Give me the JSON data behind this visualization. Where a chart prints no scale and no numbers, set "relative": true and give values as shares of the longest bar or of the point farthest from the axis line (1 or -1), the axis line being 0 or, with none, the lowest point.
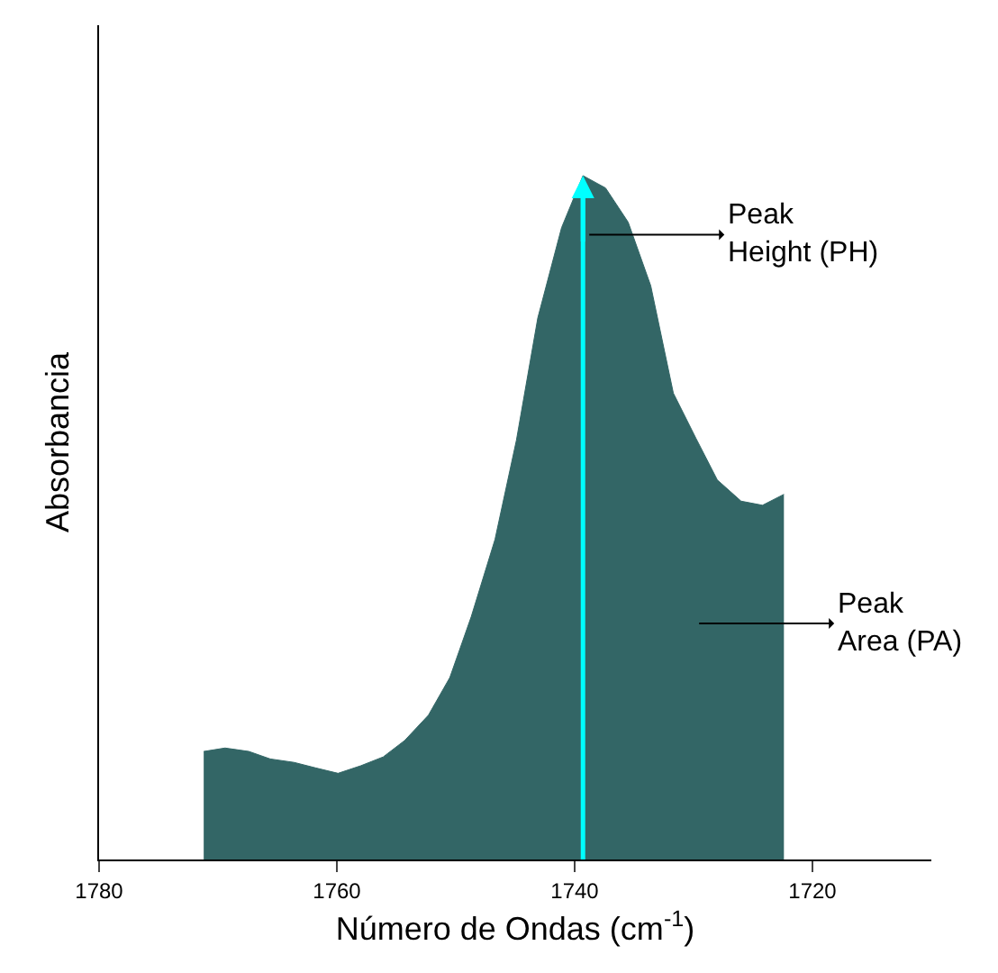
{
  "chart_data": {
    "type": "area",
    "relative": true,
    "xlabel": "Número de Ondas (cm$^{-1}$)",
    "ylabel": "Absorbancia",
    "xlim": [
      1780,
      1710
    ],
    "xticks": [
      1780,
      1760,
      1740,
      1720
    ],
    "marker": "none",
    "series": [
      {
        "color": "#336666",
        "x": [
          1771.2,
          1769.4,
          1767.4,
          1765.6,
          1763.6,
          1761.8,
          1759.9,
          1758.0,
          1756.1,
          1754.3,
          1752.3,
          1750.5,
          1748.7,
          1746.7,
          1744.9,
          1743.1,
          1741.1,
          1739.3,
          1737.4,
          1735.5,
          1733.6,
          1731.7,
          1729.8,
          1728.0,
          1726.0,
          1724.2,
          1722.4
        ],
        "values": [
          0.158,
          0.163,
          0.158,
          0.147,
          0.142,
          0.134,
          0.126,
          0.137,
          0.15,
          0.174,
          0.211,
          0.266,
          0.355,
          0.468,
          0.613,
          0.792,
          0.924,
          1.0,
          0.982,
          0.932,
          0.839,
          0.682,
          0.616,
          0.555,
          0.524,
          0.518,
          0.534
        ]
      }
    ],
    "ref_lines": [
      {
        "axis": "x",
        "value": 1739.3,
        "color": "#00ffff"
      }
    ],
    "annotations": [
      "Peak\nHeight (PH)",
      "Peak\nArea (PA)"
    ]
  }
}
